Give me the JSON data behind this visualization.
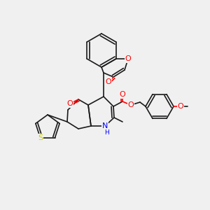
{
  "bg_color": "#f0f0f0",
  "bond_color": "#1a1a1a",
  "atom_colors": {
    "O": "#ff0000",
    "N": "#0000ff",
    "S": "#cccc00",
    "C": "#1a1a1a"
  },
  "font_size": 7,
  "lw": 1.2
}
